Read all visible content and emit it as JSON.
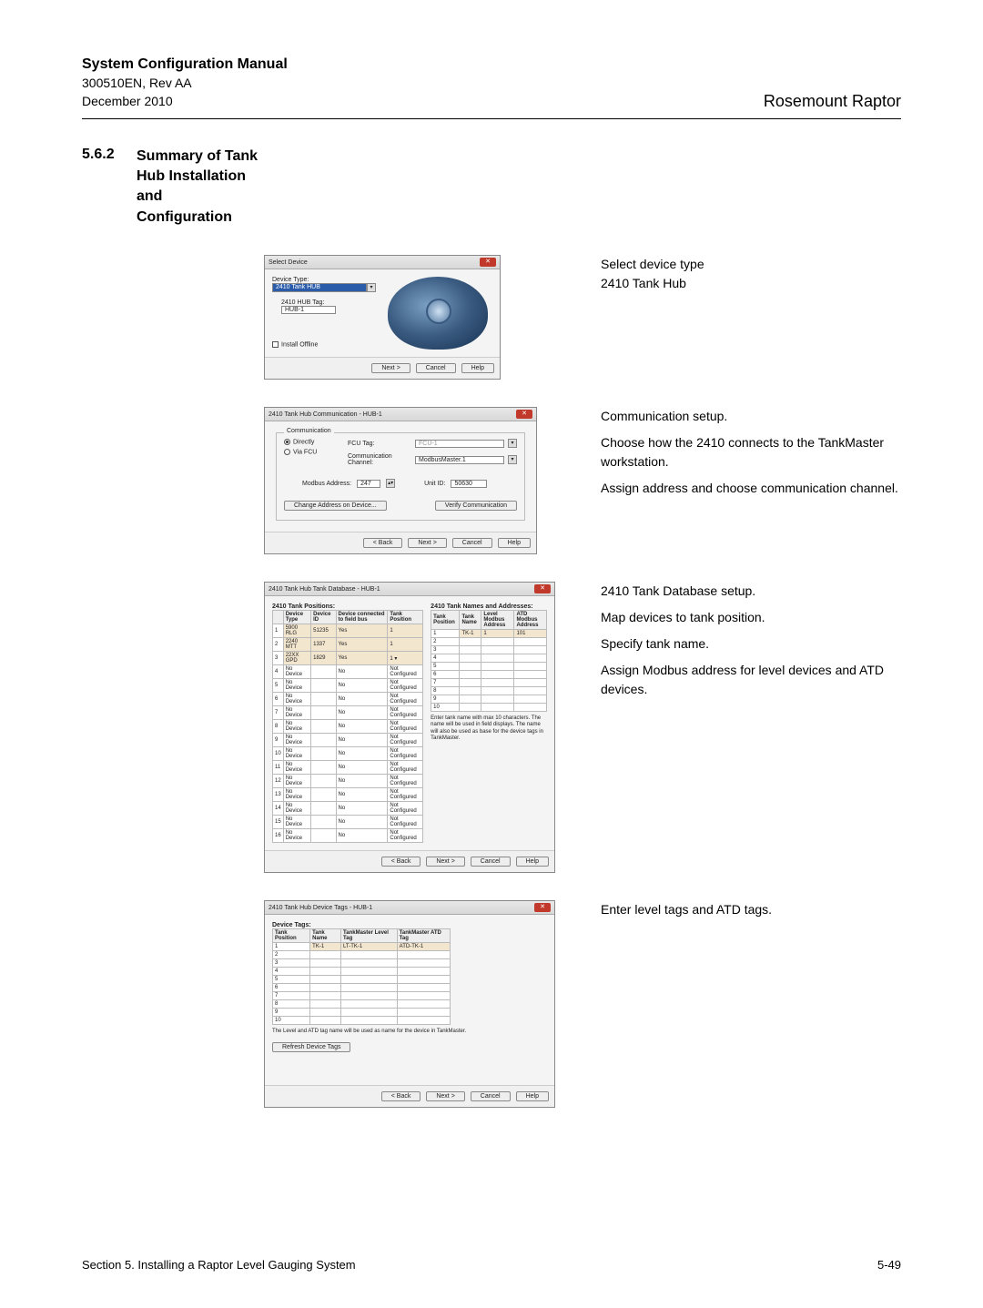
{
  "header": {
    "title": "System Configuration Manual",
    "doc_ref": "300510EN, Rev AA",
    "date": "December 2010",
    "product": "Rosemount Raptor"
  },
  "section": {
    "number": "5.6.2",
    "title_line1": "Summary of Tank",
    "title_line2": "Hub Installation",
    "title_line3": "and",
    "title_line4": "Configuration"
  },
  "dlg1": {
    "title": "Select Device",
    "device_type_label": "Device Type:",
    "device_type_value": "2410 Tank HUB",
    "tag_label": "2410 HUB Tag:",
    "tag_value": "HUB-1",
    "install_offline": "Install Offline",
    "btn_next": "Next >",
    "btn_cancel": "Cancel",
    "btn_help": "Help"
  },
  "desc1": {
    "l1": "Select device type",
    "l2": "2410 Tank Hub"
  },
  "dlg2": {
    "title": "2410 Tank Hub Communication - HUB-1",
    "legend": "Communication",
    "directly": "Directly",
    "via_fcu": "Via FCU",
    "fcu_tag_label": "FCU Tag:",
    "fcu_tag_value": "FCU-1",
    "chan_label": "Communication Channel:",
    "chan_value": "ModbusMaster.1",
    "modbus_addr_label": "Modbus Address:",
    "modbus_addr_value": "247",
    "unit_id_label": "Unit ID:",
    "unit_id_value": "50630",
    "btn_change": "Change Address on Device...",
    "btn_verify": "Verify Communication",
    "btn_back": "< Back",
    "btn_next": "Next >",
    "btn_cancel": "Cancel",
    "btn_help": "Help"
  },
  "desc2": {
    "p1": "Communication setup.",
    "p2": "Choose how the 2410 connects to the TankMaster workstation.",
    "p3": "Assign address and choose communication channel."
  },
  "dlg3": {
    "title": "2410 Tank Hub Tank Database - HUB-1",
    "left_header": "2410 Tank Positions:",
    "right_header": "2410 Tank Names and Addresses:",
    "cols_left": [
      "",
      "Device Type",
      "Device ID",
      "Device connected to field bus",
      "Tank Position"
    ],
    "cols_right": [
      "Tank Position",
      "Tank Name",
      "Level Modbus Address",
      "ATD Modbus Address"
    ],
    "rows_left": [
      [
        "1",
        "5900 RLG",
        "51235",
        "Yes",
        "1"
      ],
      [
        "2",
        "2240 MTT",
        "1337",
        "Yes",
        "1"
      ],
      [
        "3",
        "22XX GPD",
        "1829",
        "Yes",
        "1   ▾"
      ],
      [
        "4",
        "No Device",
        "",
        "No",
        "Not Configured"
      ],
      [
        "5",
        "No Device",
        "",
        "No",
        "Not Configured"
      ],
      [
        "6",
        "No Device",
        "",
        "No",
        "Not Configured"
      ],
      [
        "7",
        "No Device",
        "",
        "No",
        "Not Configured"
      ],
      [
        "8",
        "No Device",
        "",
        "No",
        "Not Configured"
      ],
      [
        "9",
        "No Device",
        "",
        "No",
        "Not Configured"
      ],
      [
        "10",
        "No Device",
        "",
        "No",
        "Not Configured"
      ],
      [
        "11",
        "No Device",
        "",
        "No",
        "Not Configured"
      ],
      [
        "12",
        "No Device",
        "",
        "No",
        "Not Configured"
      ],
      [
        "13",
        "No Device",
        "",
        "No",
        "Not Configured"
      ],
      [
        "14",
        "No Device",
        "",
        "No",
        "Not Configured"
      ],
      [
        "15",
        "No Device",
        "",
        "No",
        "Not Configured"
      ],
      [
        "16",
        "No Device",
        "",
        "No",
        "Not Configured"
      ]
    ],
    "rows_right": [
      [
        "1",
        "TK-1",
        "1",
        "101"
      ],
      [
        "2",
        "",
        "",
        ""
      ],
      [
        "3",
        "",
        "",
        ""
      ],
      [
        "4",
        "",
        "",
        ""
      ],
      [
        "5",
        "",
        "",
        ""
      ],
      [
        "6",
        "",
        "",
        ""
      ],
      [
        "7",
        "",
        "",
        ""
      ],
      [
        "8",
        "",
        "",
        ""
      ],
      [
        "9",
        "",
        "",
        ""
      ],
      [
        "10",
        "",
        "",
        ""
      ]
    ],
    "note": "Enter tank name with max 10 characters. The name will be used in field displays. The name will also be used as base for the device tags in TankMaster.",
    "btn_back": "< Back",
    "btn_next": "Next >",
    "btn_cancel": "Cancel",
    "btn_help": "Help"
  },
  "desc3": {
    "p1": "2410 Tank Database setup.",
    "p2": "Map devices to tank position.",
    "p3": "Specify tank name.",
    "p4": "Assign Modbus address for level devices and ATD devices."
  },
  "dlg4": {
    "title": "2410 Tank Hub Device Tags - HUB-1",
    "legend": "Device Tags:",
    "cols": [
      "Tank Position",
      "Tank Name",
      "TankMaster Level Tag",
      "TankMaster ATD Tag"
    ],
    "rows": [
      [
        "1",
        "TK-1",
        "LT-TK-1",
        "ATD-TK-1"
      ],
      [
        "2",
        "",
        "",
        ""
      ],
      [
        "3",
        "",
        "",
        ""
      ],
      [
        "4",
        "",
        "",
        ""
      ],
      [
        "5",
        "",
        "",
        ""
      ],
      [
        "6",
        "",
        "",
        ""
      ],
      [
        "7",
        "",
        "",
        ""
      ],
      [
        "8",
        "",
        "",
        ""
      ],
      [
        "9",
        "",
        "",
        ""
      ],
      [
        "10",
        "",
        "",
        ""
      ]
    ],
    "note": "The Level and ATD tag name will be used as name for the device in TankMaster.",
    "btn_refresh": "Refresh Device Tags",
    "btn_back": "< Back",
    "btn_next": "Next >",
    "btn_cancel": "Cancel",
    "btn_help": "Help"
  },
  "desc4": {
    "p1": "Enter level tags and ATD tags."
  },
  "footer": {
    "left": "Section 5. Installing a Raptor Level Gauging System",
    "right": "5-49"
  }
}
